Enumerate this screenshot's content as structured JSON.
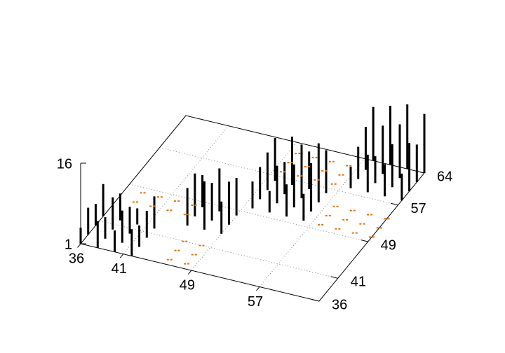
{
  "chart_data": {
    "type": "impulse3d",
    "xlim": [
      36,
      64
    ],
    "ylim": [
      36,
      64
    ],
    "zlim": [
      1,
      16
    ],
    "xticks": [
      36,
      41,
      49,
      57
    ],
    "yticks": [
      36,
      41,
      49,
      57,
      64
    ],
    "zticks": [
      1,
      16
    ],
    "grid": true,
    "series": [
      {
        "style": "impulses",
        "color": "#000000",
        "x": [
          36,
          36,
          36,
          36,
          38,
          38,
          38,
          38,
          40,
          40,
          40,
          40,
          42,
          42,
          42,
          42,
          45,
          45,
          45,
          47,
          47,
          47,
          49,
          49,
          49,
          50,
          50,
          50,
          50,
          52,
          52,
          52,
          52,
          54,
          54,
          54,
          54,
          56,
          56,
          56,
          56,
          58,
          58,
          58,
          58,
          60,
          60,
          60,
          60,
          62,
          62,
          62,
          62,
          64,
          64,
          64,
          64
        ],
        "y": [
          36,
          38,
          40,
          42,
          36,
          38,
          40,
          42,
          36,
          38,
          40,
          42,
          36,
          38,
          40,
          42,
          44,
          46,
          48,
          44,
          46,
          48,
          44,
          46,
          48,
          50,
          52,
          54,
          56,
          50,
          52,
          54,
          56,
          50,
          52,
          54,
          56,
          50,
          52,
          54,
          56,
          58,
          60,
          62,
          64,
          58,
          60,
          62,
          64,
          58,
          60,
          62,
          64,
          58,
          60,
          62,
          64
        ],
        "values": [
          4,
          6,
          5,
          7,
          6,
          5,
          7,
          6,
          5,
          7,
          6,
          4,
          6,
          5,
          6,
          7,
          8,
          9,
          7,
          10,
          8,
          9,
          7,
          9,
          8,
          6,
          7,
          8,
          9,
          5,
          8,
          7,
          10,
          7,
          9,
          11,
          8,
          6,
          10,
          12,
          9,
          5,
          7,
          9,
          11,
          8,
          6,
          10,
          12,
          7,
          9,
          11,
          13,
          6,
          10,
          8,
          12
        ]
      },
      {
        "style": "points",
        "color": "#e87000",
        "x": [
          38,
          38,
          40,
          40,
          42,
          42,
          44,
          44,
          46,
          46,
          46,
          48,
          48,
          48,
          50,
          50,
          50,
          52,
          52,
          52,
          54,
          54,
          54,
          56,
          56,
          56,
          58,
          58,
          58,
          60,
          60,
          60,
          62,
          62,
          62,
          64,
          64,
          64
        ],
        "y": [
          46,
          48,
          46,
          48,
          46,
          48,
          46,
          48,
          37,
          39,
          41,
          37,
          39,
          41,
          58,
          60,
          62,
          58,
          60,
          62,
          58,
          60,
          62,
          58,
          60,
          62,
          50,
          52,
          54,
          50,
          52,
          54,
          50,
          52,
          54,
          50,
          52,
          54
        ],
        "values": [
          1,
          1,
          1,
          1,
          1,
          1,
          1,
          1,
          1,
          1,
          1,
          1,
          1,
          1,
          1,
          1,
          1,
          1,
          1,
          1,
          1,
          1,
          1,
          1,
          1,
          1,
          1,
          1,
          1,
          1,
          1,
          1,
          1,
          1,
          1,
          1,
          1,
          1
        ]
      }
    ]
  }
}
